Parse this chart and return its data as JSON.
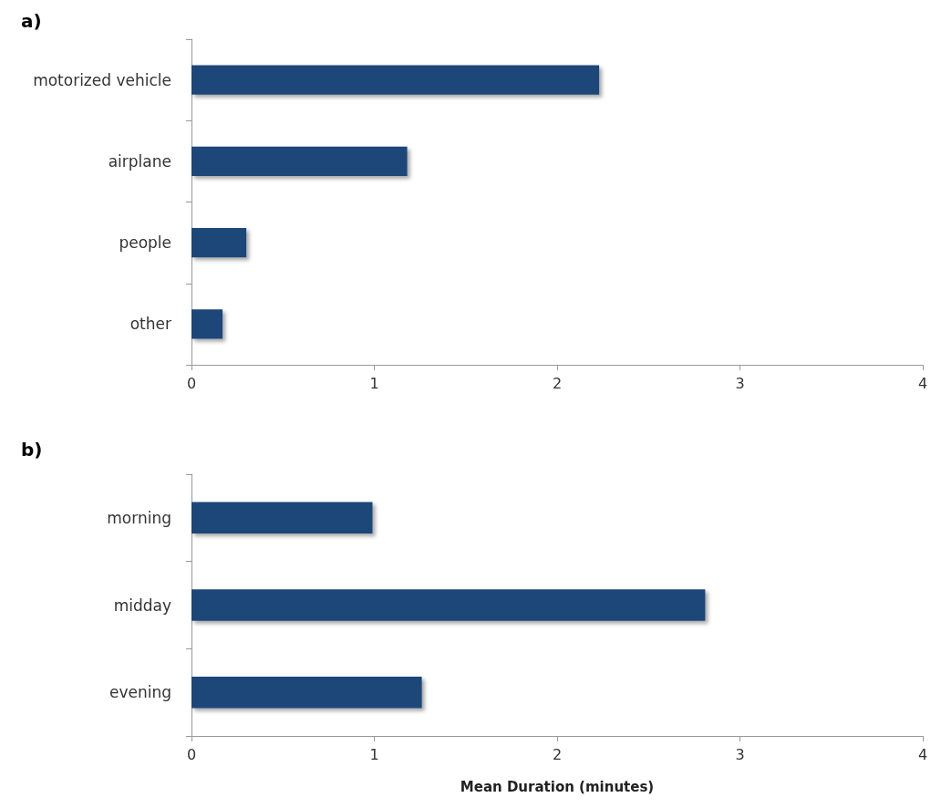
{
  "chart_data": [
    {
      "type": "bar",
      "orientation": "horizontal",
      "title": "a)",
      "categories": [
        "motorized vehicle",
        "airplane",
        "people",
        "other"
      ],
      "values": [
        2.23,
        1.18,
        0.3,
        0.17
      ],
      "color": "#1f4678",
      "xlim": [
        0,
        4
      ],
      "xticks": [
        0,
        1,
        2,
        3,
        4
      ]
    },
    {
      "type": "bar",
      "orientation": "horizontal",
      "title": "b)",
      "categories": [
        "morning",
        "midday",
        "evening"
      ],
      "values": [
        0.99,
        2.81,
        1.26
      ],
      "color": "#1f4678",
      "xlim": [
        0,
        4
      ],
      "xticks": [
        0,
        1,
        2,
        3,
        4
      ],
      "xlabel": "Mean Duration (minutes)"
    }
  ]
}
